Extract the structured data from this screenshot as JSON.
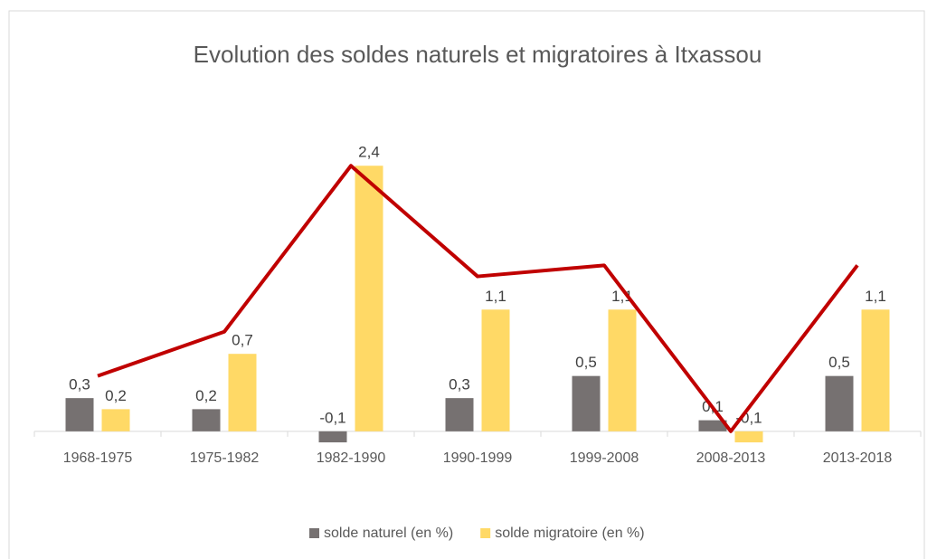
{
  "chart_data": {
    "type": "bar",
    "title": "Evolution des soldes naturels et migratoires à Itxassou",
    "categories": [
      "1968-1975",
      "1975-1982",
      "1982-1990",
      "1990-1999",
      "1999-2008",
      "2008-2013",
      "2013-2018"
    ],
    "series": [
      {
        "name": "solde naturel (en %)",
        "color": "#767171",
        "values": [
          0.3,
          0.2,
          -0.1,
          0.3,
          0.5,
          0.1,
          0.5
        ],
        "value_labels": [
          "0,3",
          "0,2",
          "-0,1",
          "0,3",
          "0,5",
          "0,1",
          "0,5"
        ]
      },
      {
        "name": "solde migratoire (en %)",
        "color": "#ffd966",
        "values": [
          0.2,
          0.7,
          2.4,
          1.1,
          1.1,
          -0.1,
          1.1
        ],
        "value_labels": [
          "0,2",
          "0,7",
          "2,4",
          "1,1",
          "1,1",
          "-0,1",
          "1,1"
        ]
      },
      {
        "type": "line",
        "color": "#c00000",
        "values": [
          0.5,
          0.9,
          2.4,
          1.4,
          1.5,
          0,
          1.5
        ]
      }
    ],
    "ylim": [
      -0.5,
      2.5
    ],
    "legend": "bottom"
  }
}
